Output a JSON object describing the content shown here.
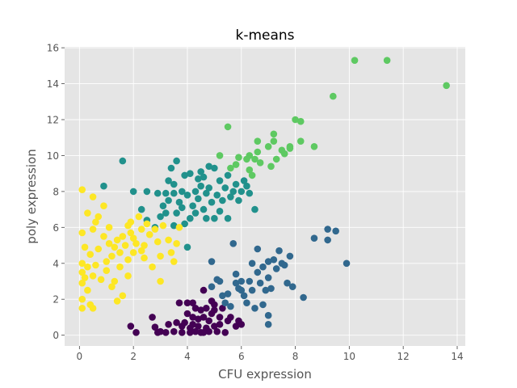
{
  "chart_data": {
    "type": "scatter",
    "title": "k-means",
    "xlabel": "CFU expression",
    "ylabel": "poly expression",
    "xlim": [
      -0.55,
      14.3
    ],
    "ylim": [
      -0.6,
      16.05
    ],
    "x_ticks": [
      0,
      2,
      4,
      6,
      8,
      10,
      12,
      14
    ],
    "y_ticks": [
      0,
      2,
      4,
      6,
      8,
      10,
      12,
      14,
      16
    ],
    "grid": true,
    "legend": "none",
    "colors": {
      "background": "#e5e5e5",
      "grid": "#ffffff",
      "text": "#555555",
      "title": "#000000"
    },
    "series": [
      {
        "color": "#440154",
        "points": [
          [
            1.9,
            0.5
          ],
          [
            2.1,
            0.15
          ],
          [
            2.7,
            1.0
          ],
          [
            2.8,
            0.45
          ],
          [
            2.9,
            0.15
          ],
          [
            3.0,
            0.2
          ],
          [
            3.2,
            0.15
          ],
          [
            3.3,
            0.6
          ],
          [
            3.5,
            0.2
          ],
          [
            3.6,
            0.7
          ],
          [
            3.7,
            1.8
          ],
          [
            3.8,
            0.5
          ],
          [
            3.8,
            0.15
          ],
          [
            3.9,
            0.7
          ],
          [
            4.0,
            1.8
          ],
          [
            4.0,
            1.2
          ],
          [
            4.1,
            0.4
          ],
          [
            4.1,
            0.15
          ],
          [
            4.2,
            1.0
          ],
          [
            4.2,
            0.6
          ],
          [
            4.3,
            1.5
          ],
          [
            4.3,
            0.2
          ],
          [
            4.4,
            0.9
          ],
          [
            4.4,
            0.5
          ],
          [
            4.5,
            1.4
          ],
          [
            4.5,
            0.15
          ],
          [
            4.6,
            2.5
          ],
          [
            4.6,
            1.0
          ],
          [
            4.7,
            0.4
          ],
          [
            4.7,
            1.5
          ],
          [
            4.8,
            0.8
          ],
          [
            4.8,
            0.2
          ],
          [
            4.9,
            1.9
          ],
          [
            4.9,
            1.2
          ],
          [
            5.0,
            1.4
          ],
          [
            5.0,
            0.5
          ],
          [
            5.1,
            0.2
          ],
          [
            5.2,
            1.0
          ],
          [
            5.2,
            0.6
          ],
          [
            5.3,
            1.5
          ],
          [
            5.4,
            0.15
          ],
          [
            5.5,
            0.8
          ],
          [
            5.6,
            1.0
          ],
          [
            5.8,
            0.5
          ],
          [
            5.9,
            0.8
          ],
          [
            6.0,
            0.6
          ],
          [
            4.6,
            0.15
          ],
          [
            5.0,
            1.7
          ],
          [
            4.2,
            1.8
          ]
        ]
      },
      {
        "color": "#31688e",
        "points": [
          [
            4.9,
            4.1
          ],
          [
            4.9,
            2.7
          ],
          [
            5.1,
            3.1
          ],
          [
            5.2,
            3.0
          ],
          [
            5.3,
            2.2
          ],
          [
            5.4,
            1.8
          ],
          [
            5.5,
            2.3
          ],
          [
            5.6,
            1.6
          ],
          [
            5.7,
            5.1
          ],
          [
            5.8,
            3.4
          ],
          [
            5.8,
            2.9
          ],
          [
            5.9,
            2.6
          ],
          [
            6.0,
            3.0
          ],
          [
            6.0,
            2.5
          ],
          [
            6.1,
            2.2
          ],
          [
            6.2,
            1.8
          ],
          [
            6.3,
            3.0
          ],
          [
            6.4,
            4.0
          ],
          [
            6.4,
            2.5
          ],
          [
            6.5,
            1.5
          ],
          [
            6.6,
            4.8
          ],
          [
            6.6,
            3.5
          ],
          [
            6.7,
            2.9
          ],
          [
            6.8,
            3.8
          ],
          [
            6.8,
            1.7
          ],
          [
            6.9,
            2.5
          ],
          [
            7.0,
            4.1
          ],
          [
            7.0,
            3.2
          ],
          [
            7.0,
            1.1
          ],
          [
            7.1,
            2.6
          ],
          [
            7.2,
            4.2
          ],
          [
            7.3,
            3.7
          ],
          [
            7.4,
            4.7
          ],
          [
            7.5,
            4.0
          ],
          [
            7.6,
            3.9
          ],
          [
            7.7,
            2.9
          ],
          [
            7.8,
            4.4
          ],
          [
            7.9,
            2.7
          ],
          [
            8.3,
            2.1
          ],
          [
            8.7,
            5.4
          ],
          [
            9.2,
            5.9
          ],
          [
            9.5,
            5.8
          ],
          [
            9.9,
            4.0
          ],
          [
            9.2,
            5.3
          ],
          [
            7.0,
            0.6
          ]
        ]
      },
      {
        "color": "#21918c",
        "points": [
          [
            0.9,
            8.3
          ],
          [
            1.6,
            9.7
          ],
          [
            2.0,
            8.0
          ],
          [
            2.3,
            7.0
          ],
          [
            2.5,
            6.4
          ],
          [
            2.5,
            8.0
          ],
          [
            2.8,
            6.0
          ],
          [
            2.9,
            7.9
          ],
          [
            3.0,
            6.6
          ],
          [
            3.1,
            7.2
          ],
          [
            3.2,
            6.8
          ],
          [
            3.3,
            7.5
          ],
          [
            3.4,
            9.3
          ],
          [
            3.5,
            6.1
          ],
          [
            3.5,
            7.9
          ],
          [
            3.5,
            8.4
          ],
          [
            3.6,
            9.7
          ],
          [
            3.6,
            6.8
          ],
          [
            3.7,
            7.4
          ],
          [
            3.8,
            7.1
          ],
          [
            3.8,
            8.0
          ],
          [
            3.9,
            6.2
          ],
          [
            3.9,
            8.9
          ],
          [
            4.0,
            4.9
          ],
          [
            4.0,
            7.8
          ],
          [
            4.1,
            6.5
          ],
          [
            4.1,
            9.0
          ],
          [
            4.2,
            7.2
          ],
          [
            4.3,
            8.0
          ],
          [
            4.3,
            6.8
          ],
          [
            4.4,
            7.6
          ],
          [
            4.5,
            8.3
          ],
          [
            4.5,
            9.1
          ],
          [
            4.6,
            7.0
          ],
          [
            4.6,
            8.8
          ],
          [
            4.7,
            7.9
          ],
          [
            4.7,
            6.5
          ],
          [
            4.8,
            9.4
          ],
          [
            4.8,
            8.2
          ],
          [
            4.9,
            7.4
          ],
          [
            5.0,
            6.5
          ],
          [
            5.0,
            9.3
          ],
          [
            5.1,
            7.8
          ],
          [
            5.2,
            8.6
          ],
          [
            5.2,
            6.9
          ],
          [
            5.3,
            7.5
          ],
          [
            5.4,
            8.2
          ],
          [
            5.5,
            6.5
          ],
          [
            5.5,
            8.9
          ],
          [
            5.6,
            7.7
          ],
          [
            5.7,
            8.0
          ],
          [
            5.8,
            8.4
          ],
          [
            5.9,
            7.5
          ],
          [
            6.0,
            8.0
          ],
          [
            6.1,
            8.6
          ],
          [
            6.2,
            8.3
          ],
          [
            6.3,
            7.9
          ],
          [
            6.5,
            7.0
          ],
          [
            3.2,
            7.9
          ],
          [
            3.3,
            8.6
          ],
          [
            4.4,
            8.7
          ]
        ]
      },
      {
        "color": "#5ec962",
        "points": [
          [
            5.2,
            10.0
          ],
          [
            5.5,
            11.6
          ],
          [
            5.6,
            9.3
          ],
          [
            5.8,
            9.5
          ],
          [
            5.9,
            9.9
          ],
          [
            6.2,
            9.8
          ],
          [
            6.3,
            10.0
          ],
          [
            6.4,
            8.9
          ],
          [
            6.5,
            9.8
          ],
          [
            6.6,
            10.2
          ],
          [
            6.6,
            10.8
          ],
          [
            6.7,
            9.6
          ],
          [
            7.0,
            10.5
          ],
          [
            7.1,
            9.4
          ],
          [
            7.2,
            10.8
          ],
          [
            7.2,
            11.2
          ],
          [
            7.3,
            9.8
          ],
          [
            7.6,
            10.1
          ],
          [
            7.8,
            10.4
          ],
          [
            7.8,
            10.5
          ],
          [
            8.0,
            12.0
          ],
          [
            8.2,
            11.9
          ],
          [
            8.2,
            10.8
          ],
          [
            8.7,
            10.5
          ],
          [
            9.4,
            13.3
          ],
          [
            10.2,
            15.3
          ],
          [
            11.4,
            15.3
          ],
          [
            13.6,
            13.9
          ],
          [
            6.3,
            9.2
          ],
          [
            7.5,
            10.3
          ]
        ]
      },
      {
        "color": "#fde725",
        "points": [
          [
            0.1,
            8.1
          ],
          [
            0.1,
            5.7
          ],
          [
            0.1,
            4.0
          ],
          [
            0.1,
            3.5
          ],
          [
            0.1,
            2.9
          ],
          [
            0.1,
            2.0
          ],
          [
            0.1,
            1.5
          ],
          [
            0.2,
            3.2
          ],
          [
            0.2,
            4.9
          ],
          [
            0.3,
            3.8
          ],
          [
            0.3,
            6.8
          ],
          [
            0.3,
            2.5
          ],
          [
            0.4,
            1.7
          ],
          [
            0.4,
            4.5
          ],
          [
            0.5,
            5.9
          ],
          [
            0.5,
            7.7
          ],
          [
            0.5,
            3.3
          ],
          [
            0.5,
            1.5
          ],
          [
            0.6,
            6.3
          ],
          [
            0.6,
            3.9
          ],
          [
            0.7,
            6.6
          ],
          [
            0.7,
            4.8
          ],
          [
            0.8,
            3.1
          ],
          [
            0.9,
            5.5
          ],
          [
            0.9,
            7.2
          ],
          [
            1.0,
            4.1
          ],
          [
            1.0,
            3.6
          ],
          [
            1.1,
            5.1
          ],
          [
            1.1,
            6.0
          ],
          [
            1.2,
            4.4
          ],
          [
            1.2,
            2.7
          ],
          [
            1.3,
            4.9
          ],
          [
            1.3,
            3.0
          ],
          [
            1.4,
            5.3
          ],
          [
            1.4,
            1.9
          ],
          [
            1.5,
            3.8
          ],
          [
            1.5,
            4.6
          ],
          [
            1.6,
            5.5
          ],
          [
            1.6,
            2.2
          ],
          [
            1.7,
            5.0
          ],
          [
            1.8,
            6.1
          ],
          [
            1.8,
            4.2
          ],
          [
            1.8,
            3.3
          ],
          [
            1.9,
            5.7
          ],
          [
            1.9,
            6.3
          ],
          [
            2.0,
            4.6
          ],
          [
            2.0,
            5.4
          ],
          [
            2.2,
            6.6
          ],
          [
            2.3,
            4.7
          ],
          [
            2.3,
            5.9
          ],
          [
            2.4,
            5.0
          ],
          [
            2.5,
            6.2
          ],
          [
            2.6,
            5.6
          ],
          [
            2.7,
            3.8
          ],
          [
            2.8,
            5.9
          ],
          [
            2.9,
            5.2
          ],
          [
            3.0,
            4.4
          ],
          [
            3.0,
            3.0
          ],
          [
            3.1,
            6.1
          ],
          [
            3.3,
            5.3
          ],
          [
            3.4,
            4.6
          ],
          [
            3.5,
            4.1
          ],
          [
            3.6,
            5.1
          ],
          [
            3.7,
            6.0
          ],
          [
            2.1,
            5.1
          ],
          [
            2.4,
            4.3
          ]
        ]
      }
    ]
  }
}
